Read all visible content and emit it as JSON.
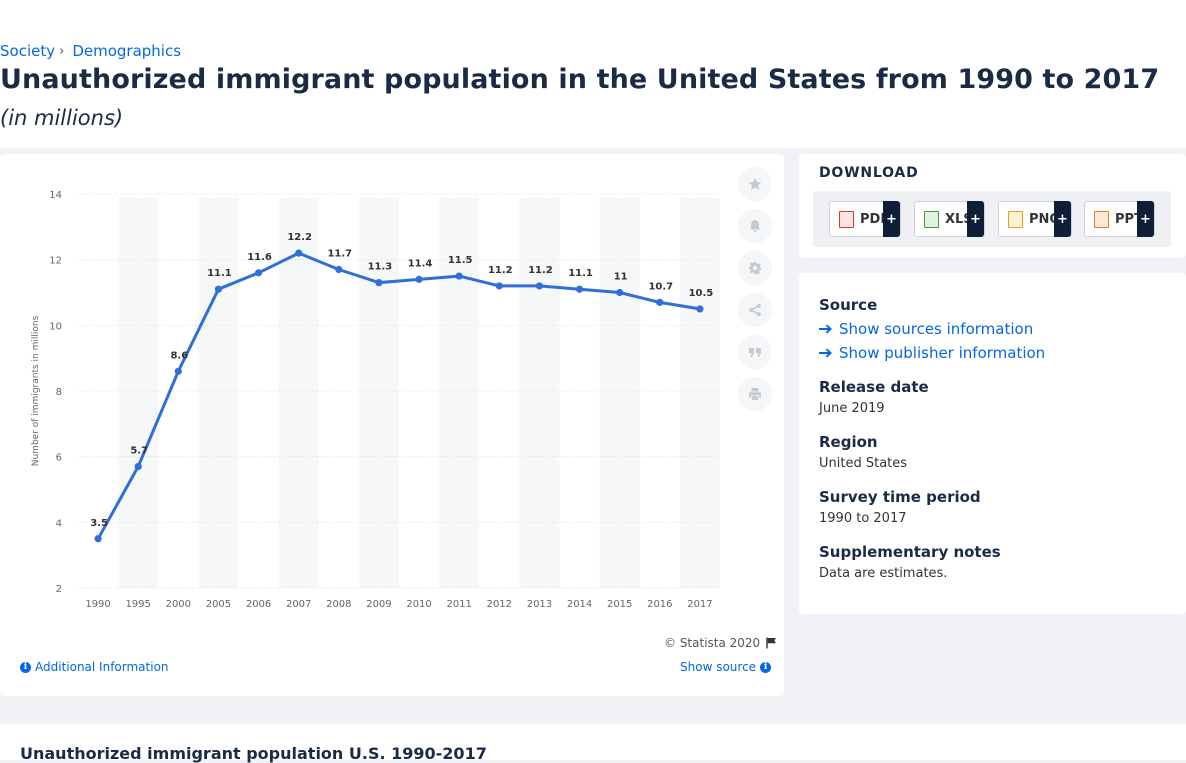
{
  "breadcrumb": {
    "item1": "Society",
    "item2": "Demographics"
  },
  "title": "Unauthorized immigrant population in the United States from 1990 to 2017",
  "subtitle": "(in millions)",
  "chart_footer": {
    "copyright": "© Statista 2020",
    "additional_info": "Additional Information",
    "show_source": "Show source"
  },
  "tools": [
    "star-icon",
    "bell-icon",
    "gear-icon",
    "share-icon",
    "quote-icon",
    "print-icon"
  ],
  "download": {
    "heading": "DOWNLOAD",
    "buttons": [
      {
        "label": "PDF",
        "icon": "pdf-file-icon",
        "color": "#d9382e"
      },
      {
        "label": "XLS",
        "icon": "xls-file-icon",
        "color": "#3e9a3a"
      },
      {
        "label": "PNG",
        "icon": "png-file-icon",
        "color": "#e4a21b"
      },
      {
        "label": "PPT",
        "icon": "ppt-file-icon",
        "color": "#e27d27"
      }
    ],
    "plus": "+"
  },
  "meta": {
    "source_heading": "Source",
    "show_sources": "Show sources information",
    "show_publisher": "Show publisher information",
    "release_heading": "Release date",
    "release_value": "June 2019",
    "region_heading": "Region",
    "region_value": "United States",
    "survey_heading": "Survey time period",
    "survey_value": "1990 to 2017",
    "notes_heading": "Supplementary notes",
    "notes_value": "Data are estimates."
  },
  "bottom": {
    "title": "Unauthorized immigrant population U.S. 1990-2017"
  },
  "colors": {
    "accent": "#0666e5",
    "line": "#2f6fd6",
    "dark": "#0f1f3a"
  },
  "chart_data": {
    "type": "line",
    "title": "Unauthorized immigrant population in the United States from 1990 to 2017",
    "xlabel": "",
    "ylabel": "Number of immigrants in millions",
    "categories": [
      "1990",
      "1995",
      "2000",
      "2005",
      "2006",
      "2007",
      "2008",
      "2009",
      "2010",
      "2011",
      "2012",
      "2013",
      "2014",
      "2015",
      "2016",
      "2017"
    ],
    "series": [
      {
        "values": [
          3.5,
          5.7,
          8.6,
          11.1,
          11.6,
          12.2,
          11.7,
          11.3,
          11.4,
          11.5,
          11.2,
          11.2,
          11.1,
          11,
          10.7,
          10.5
        ]
      }
    ],
    "data_labels": [
      "3.5",
      "5.7",
      "8.6",
      "11.1",
      "11.6",
      "12.2",
      "11.7",
      "11.3",
      "11.4",
      "11.5",
      "11.2",
      "11.2",
      "11.1",
      "11",
      "10.7",
      "10.5"
    ],
    "y_ticks": [
      2,
      4,
      6,
      8,
      10,
      12,
      14
    ],
    "ylim": [
      2,
      14
    ],
    "grid": true,
    "alternating_column_bands": true,
    "legend": "none"
  }
}
